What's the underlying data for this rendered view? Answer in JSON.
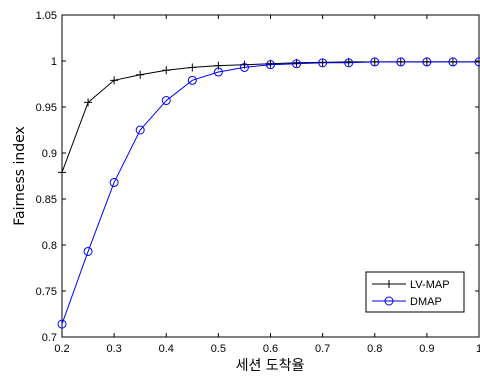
{
  "chart_data": {
    "type": "line",
    "xlabel": "세션 도착율",
    "ylabel": "Fairness index",
    "xlim": [
      0.2,
      1
    ],
    "ylim": [
      0.7,
      1.05
    ],
    "xticks": [
      "0.2",
      "0.3",
      "0.4",
      "0.5",
      "0.6",
      "0.7",
      "0.8",
      "0.9",
      "1"
    ],
    "yticks": [
      "0.7",
      "0.75",
      "0.8",
      "0.85",
      "0.9",
      "0.95",
      "1",
      "1.05"
    ],
    "grid": false,
    "legend_position": "bottom-right",
    "x": [
      0.2,
      0.25,
      0.3,
      0.35,
      0.4,
      0.45,
      0.5,
      0.55,
      0.6,
      0.65,
      0.7,
      0.75,
      0.8,
      0.85,
      0.9,
      0.95,
      1.0
    ],
    "series": [
      {
        "name": "LV-MAP",
        "color": "#000000",
        "marker": "plus",
        "values": [
          0.879,
          0.955,
          0.979,
          0.985,
          0.99,
          0.993,
          0.995,
          0.996,
          0.997,
          0.998,
          0.9985,
          0.999,
          0.999,
          0.999,
          0.999,
          0.999,
          0.999
        ]
      },
      {
        "name": "DMAP",
        "color": "#0000ff",
        "marker": "circle",
        "values": [
          0.714,
          0.793,
          0.868,
          0.925,
          0.957,
          0.979,
          0.988,
          0.993,
          0.996,
          0.997,
          0.998,
          0.998,
          0.999,
          0.999,
          0.999,
          0.999,
          0.999
        ]
      }
    ]
  }
}
